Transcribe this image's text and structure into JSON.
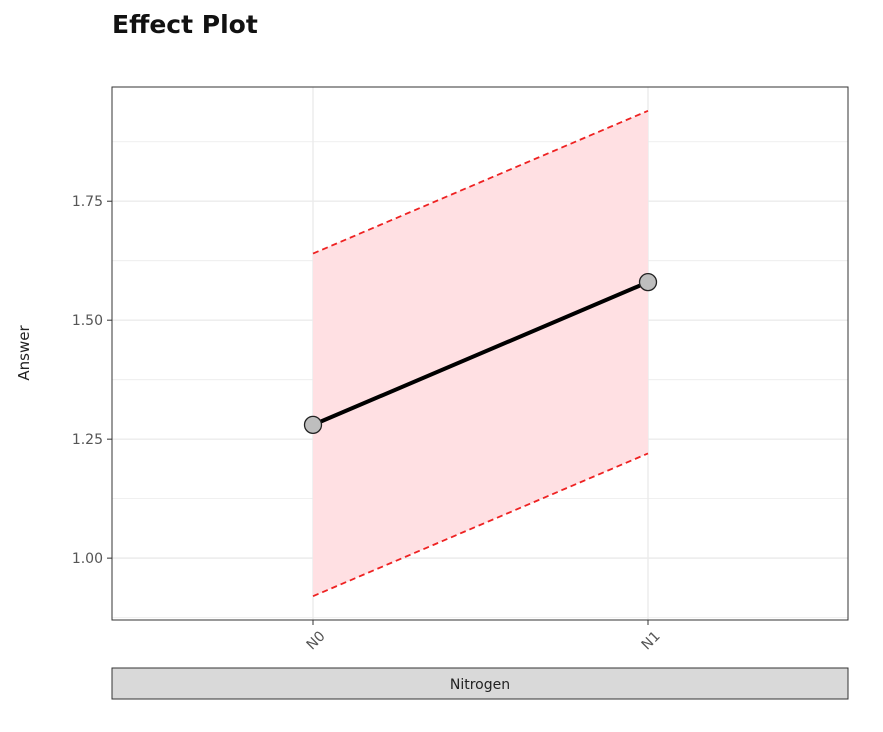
{
  "chart_data": {
    "type": "line",
    "title": "Effect Plot",
    "xlabel": "Nitrogen",
    "ylabel": "Answer",
    "categories": [
      "N0",
      "N1"
    ],
    "series": [
      {
        "values": [
          1.28,
          1.58
        ],
        "lower": [
          0.92,
          1.22
        ],
        "upper": [
          1.64,
          1.94
        ]
      }
    ],
    "ylim": [
      0.87,
      1.99
    ],
    "yticks": [
      1.0,
      1.25,
      1.5,
      1.75
    ],
    "ytick_labels": [
      "1.00",
      "1.25",
      "1.50",
      "1.75"
    ],
    "grid": true,
    "legend": "none"
  },
  "colors": {
    "line": "#000000",
    "point_fill": "#bebebe",
    "ci_fill": "#ffe0e3",
    "ci_line": "#ee2222",
    "grid": "#ebebeb",
    "strip_fill": "#d9d9d9"
  }
}
